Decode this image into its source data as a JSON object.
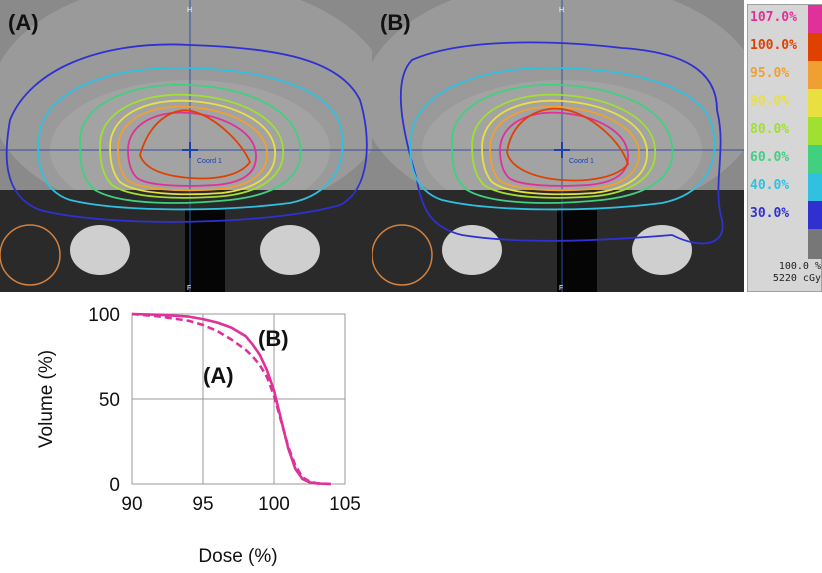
{
  "panels": [
    {
      "label": "(A)",
      "coord_label": "Coord 1",
      "marker_top": "H",
      "marker_bottom": "F"
    },
    {
      "label": "(B)",
      "coord_label": "Coord 1",
      "marker_top": "H",
      "marker_bottom": "F"
    }
  ],
  "legend": {
    "items": [
      {
        "label": "107.0%",
        "color": "#e0309a"
      },
      {
        "label": "100.0%",
        "color": "#e04000"
      },
      {
        "label": "95.0%",
        "color": "#f0a030"
      },
      {
        "label": "90.0%",
        "color": "#e8e040"
      },
      {
        "label": "80.0%",
        "color": "#a0e030"
      },
      {
        "label": "60.0%",
        "color": "#40d080"
      },
      {
        "label": "40.0%",
        "color": "#30c0e0"
      },
      {
        "label": "30.0%",
        "color": "#3030d0"
      }
    ],
    "footer_percent": "100.0 %",
    "footer_dose": "5220 cGy"
  },
  "chart_data": {
    "type": "line",
    "xlabel": "Dose (%)",
    "ylabel": "Volume (%)",
    "xlim": [
      90,
      105
    ],
    "ylim": [
      0,
      100
    ],
    "xticks": [
      "90",
      "95",
      "100",
      "105"
    ],
    "yticks": [
      "0",
      "50",
      "100"
    ],
    "grid": true,
    "color": "#e0309a",
    "series": [
      {
        "name": "(A)",
        "style": "dashed",
        "x": [
          90,
          92,
          94,
          95,
          96,
          97,
          98,
          98.5,
          99,
          99.5,
          100,
          100.5,
          101,
          101.5,
          102,
          102.5,
          103,
          104
        ],
        "y": [
          100,
          98.5,
          96,
          93.5,
          90,
          85,
          79,
          75,
          70,
          63,
          52,
          37,
          22,
          11,
          4,
          1.5,
          0.5,
          0
        ]
      },
      {
        "name": "(B)",
        "style": "solid",
        "x": [
          90,
          92,
          94,
          95,
          96,
          97,
          98,
          98.5,
          99,
          99.5,
          100,
          100.5,
          101,
          101.5,
          102,
          102.5,
          103,
          104
        ],
        "y": [
          100,
          99.5,
          98.5,
          97,
          95,
          92,
          87,
          82,
          76,
          67,
          55,
          38,
          21,
          9,
          3,
          1,
          0.3,
          0
        ]
      }
    ]
  }
}
